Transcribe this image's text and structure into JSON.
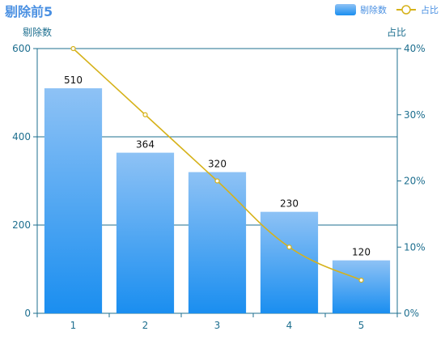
{
  "chart_data": {
    "type": "bar",
    "title": "剔除前5",
    "categories": [
      "1",
      "2",
      "3",
      "4",
      "5"
    ],
    "series": [
      {
        "name": "剔除数",
        "type": "bar",
        "axis": "left",
        "values": [
          510,
          364,
          320,
          230,
          120
        ],
        "labels": [
          "510",
          "364",
          "320",
          "230",
          "120"
        ]
      },
      {
        "name": "占比",
        "type": "line",
        "axis": "right",
        "values": [
          40,
          30,
          20,
          10,
          5
        ]
      }
    ],
    "ylabel": "剔除数",
    "ylabel_right": "占比",
    "ylim": [
      0,
      600
    ],
    "ylim_right": [
      0,
      40
    ],
    "y_ticks": [
      "0",
      "200",
      "400",
      "600"
    ],
    "y_ticks_right": [
      "0%",
      "10%",
      "20%",
      "30%",
      "40%"
    ],
    "grid": true,
    "legend_position": "top-right",
    "colors": {
      "title": "#4a90e2",
      "axis": "#1e6f8f",
      "bar_top": "#8ec2f5",
      "bar_bottom": "#1a8ef0",
      "line": "#d6b21a"
    }
  }
}
